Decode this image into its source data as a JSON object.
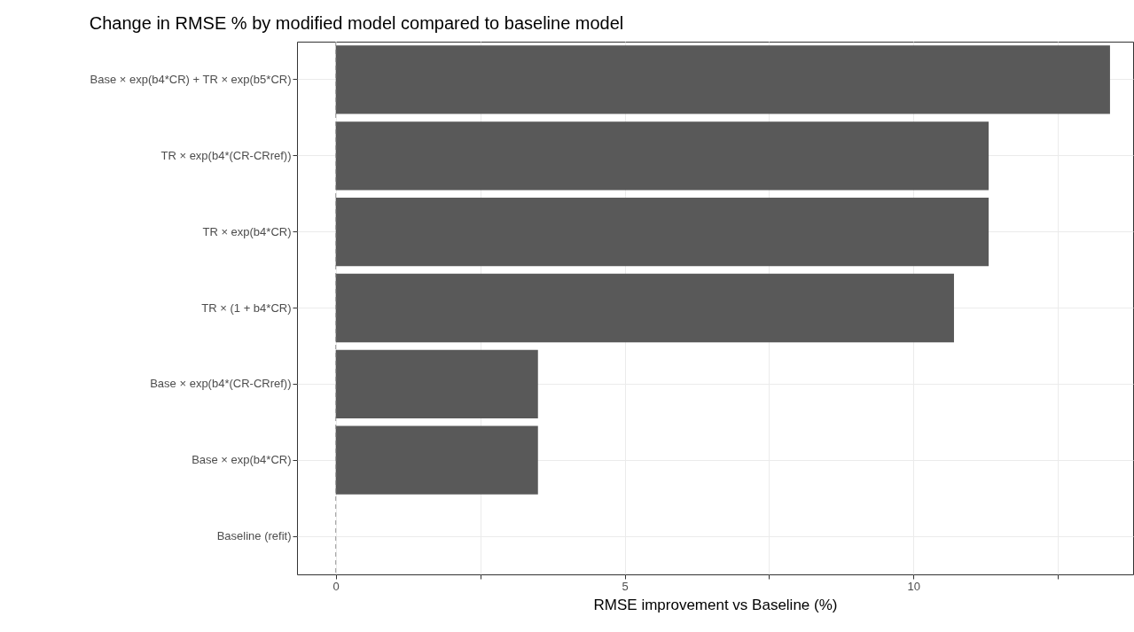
{
  "chart_data": {
    "type": "bar",
    "orientation": "horizontal",
    "title": "Change in RMSE % by modified model compared to baseline model",
    "xlabel": "RMSE improvement vs Baseline (%)",
    "categories": [
      "Base × exp(b4*CR) + TR × exp(b5*CR)",
      "TR × exp(b4*(CR-CRref))",
      "TR × exp(b4*CR)",
      "TR × (1 + b4*CR)",
      "Base × exp(b4*(CR-CRref))",
      "Base × exp(b4*CR)",
      "Baseline (refit)"
    ],
    "values": [
      13.4,
      11.3,
      11.3,
      10.7,
      3.5,
      3.5,
      0
    ],
    "color": "#595959",
    "xlim": [
      -0.67,
      13.8
    ],
    "xticks": [
      0,
      {
        "value": 2.5,
        "label": null
      },
      5,
      {
        "value": 7.5,
        "label": null
      },
      10,
      {
        "value": 12.5,
        "label": null
      }
    ],
    "grid": true,
    "ref_lines": [
      {
        "axis": "x",
        "value": 0,
        "color": "#999999",
        "line_style": "dashed"
      }
    ]
  }
}
